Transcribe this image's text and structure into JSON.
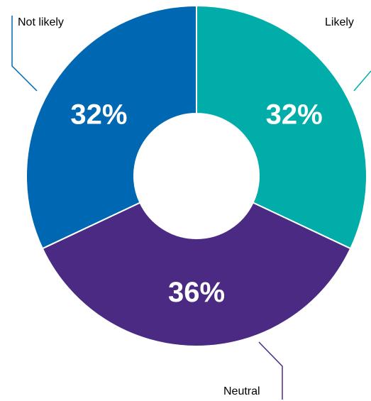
{
  "chart_data": {
    "type": "pie",
    "donut": true,
    "categories": [
      "Likely",
      "Neutral",
      "Not likely"
    ],
    "values": [
      32,
      36,
      32
    ],
    "value_labels": [
      "32%",
      "36%",
      "32%"
    ],
    "colors": [
      "#00ADA8",
      "#4A2A83",
      "#0068B3"
    ],
    "leader_line_colors": [
      "#00ADA8",
      "#4A2A83",
      "#0068B3"
    ],
    "start_angle_deg": 0,
    "direction": "clockwise"
  }
}
